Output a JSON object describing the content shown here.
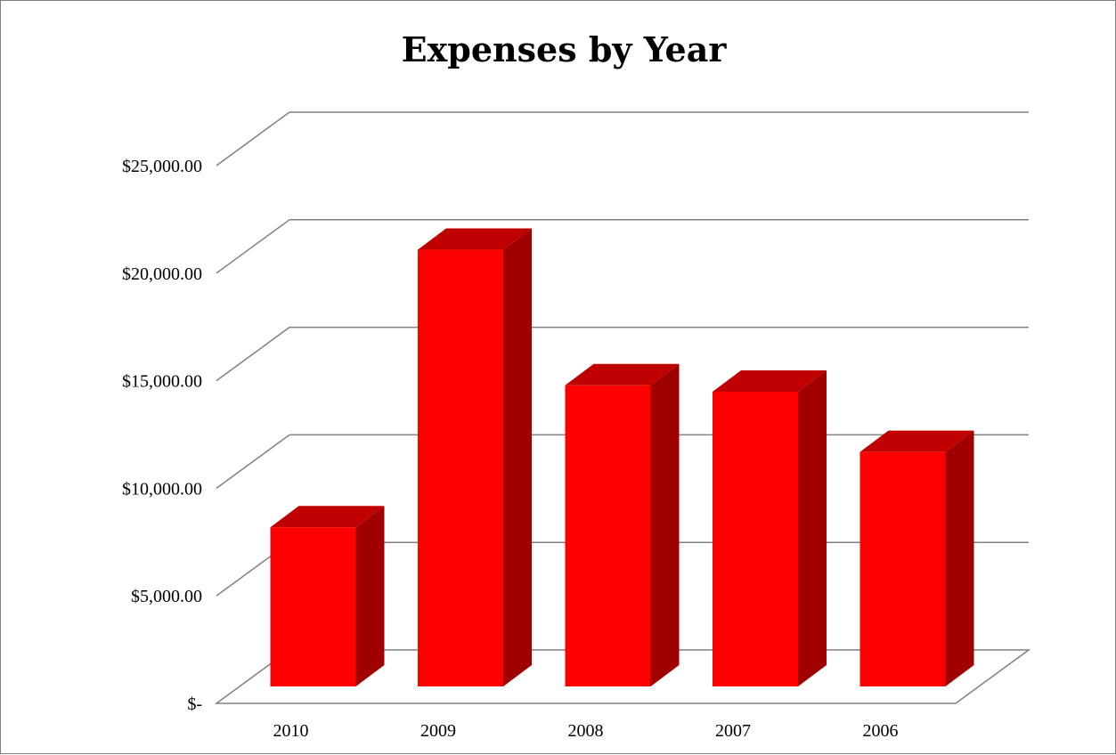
{
  "chart_data": {
    "type": "bar",
    "title": "Expenses by Year",
    "xlabel": "",
    "ylabel": "",
    "categories": [
      "2010",
      "2009",
      "2008",
      "2007",
      "2006"
    ],
    "values": [
      7400,
      20300,
      14000,
      13700,
      10900
    ],
    "ylim": [
      0,
      25000
    ],
    "yticks": [
      0,
      5000,
      10000,
      15000,
      20000,
      25000
    ],
    "ytick_labels": [
      "$-",
      "$5,000.00",
      "$10,000.00",
      "$15,000.00",
      "$20,000.00",
      "$25,000.00"
    ],
    "grid": true,
    "legend": "none",
    "style": "3d-column",
    "colors": {
      "bar_front": "#ff0000",
      "bar_top": "#c00000",
      "bar_side": "#a00000",
      "gridline": "#808080"
    }
  }
}
